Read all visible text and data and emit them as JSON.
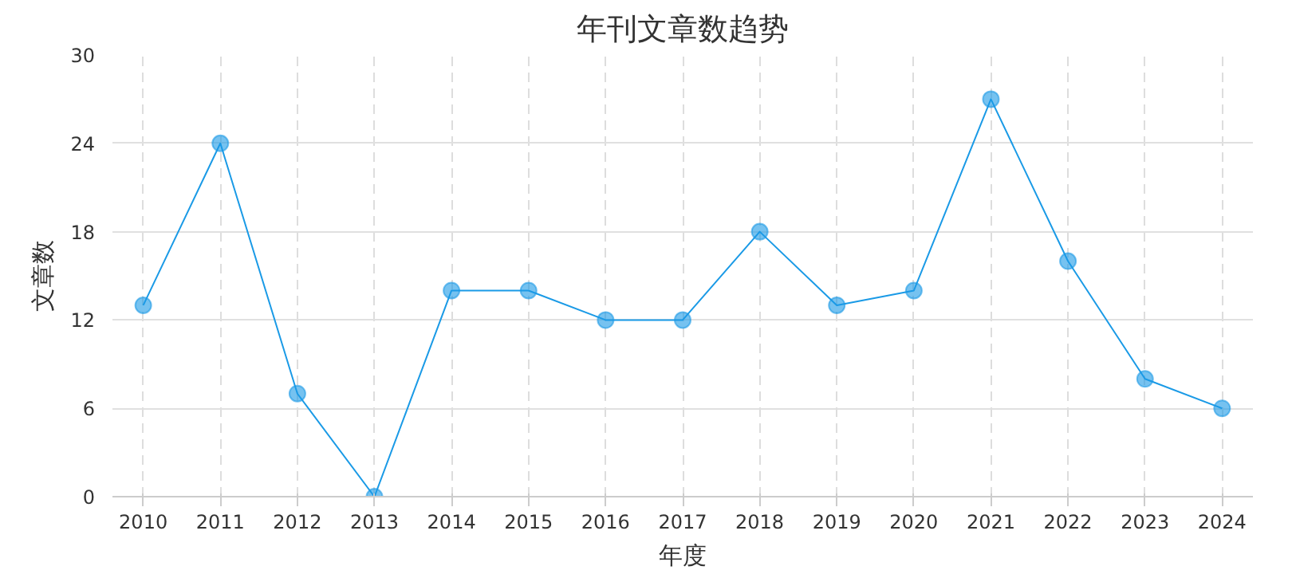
{
  "chart_data": {
    "type": "line",
    "title": "年刊文章数趋势",
    "xlabel": "年度",
    "ylabel": "文章数",
    "categories": [
      "2010",
      "2011",
      "2012",
      "2013",
      "2014",
      "2015",
      "2016",
      "2017",
      "2018",
      "2019",
      "2020",
      "2021",
      "2022",
      "2023",
      "2024"
    ],
    "series": [
      {
        "color": "#1a9ae6",
        "values": [
          13,
          24,
          7,
          0,
          14,
          14,
          12,
          12,
          18,
          13,
          14,
          27,
          16,
          8,
          6
        ]
      }
    ],
    "ylim": [
      0,
      30
    ],
    "yticks": [
      0,
      6,
      12,
      18,
      24,
      30
    ],
    "grid": true,
    "marker": "circle",
    "line_style": "solid"
  }
}
